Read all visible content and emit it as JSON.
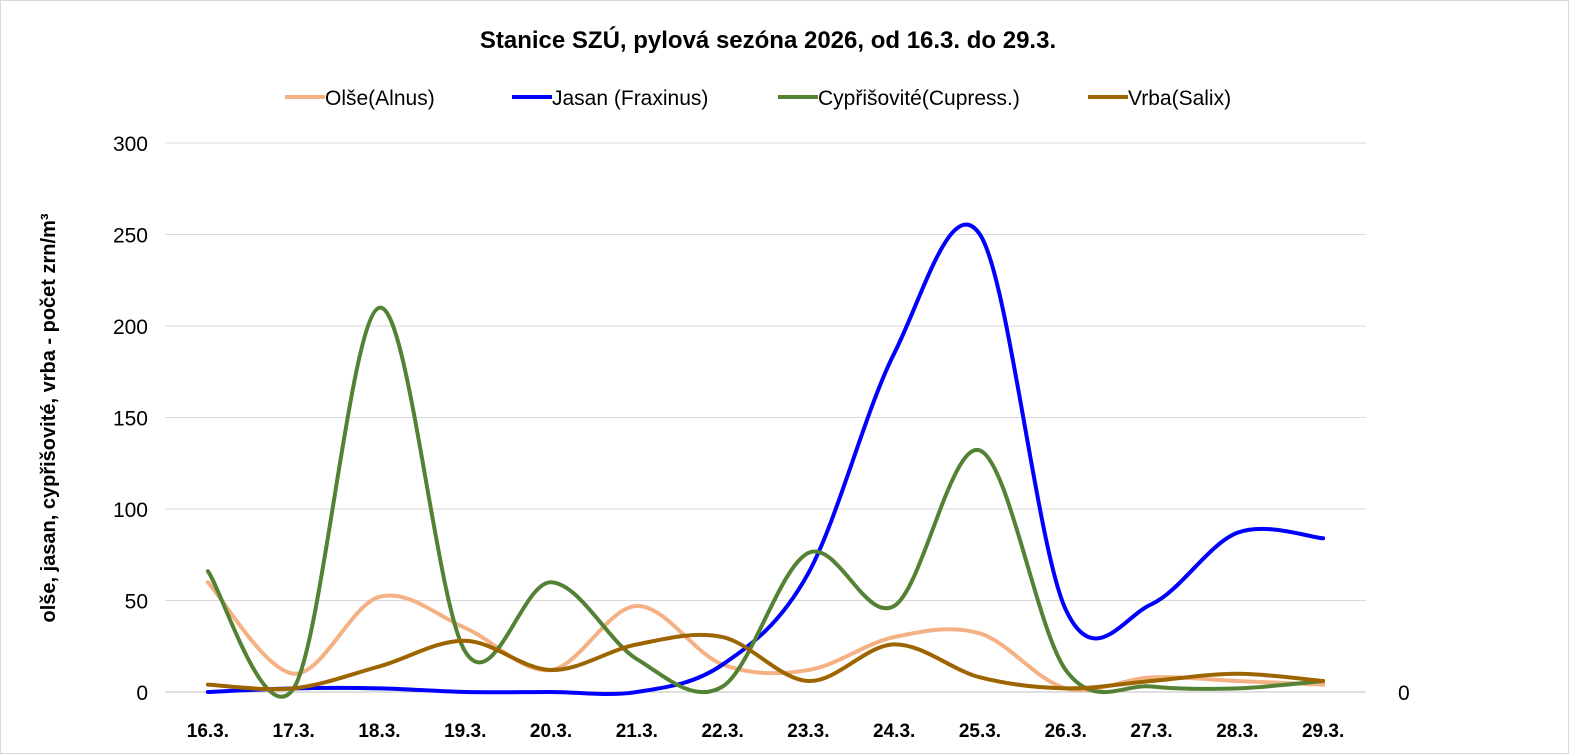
{
  "chart_data": {
    "type": "line",
    "title": "Stanice SZÚ, pylová sezóna 2026, od 16.3. do 29.3.",
    "xlabel": "",
    "ylabel": "olše, jasan, cypřišovité, vrba - počet zrn/m³",
    "ylim": [
      0,
      300
    ],
    "yticks": [
      "0",
      "50",
      "100",
      "150",
      "200",
      "250",
      "300"
    ],
    "secondary_yticks": [
      "0"
    ],
    "grid": true,
    "legend_position": "top",
    "categories": [
      "16.3.",
      "17.3.",
      "18.3.",
      "19.3.",
      "20.3.",
      "21.3.",
      "22.3.",
      "23.3.",
      "24.3.",
      "25.3.",
      "26.3.",
      "27.3.",
      "28.3.",
      "29.3."
    ],
    "series": [
      {
        "name": "Olše(Alnus)",
        "color": "#F4B183",
        "values": [
          60,
          10,
          52,
          35,
          12,
          47,
          15,
          12,
          30,
          32,
          2,
          8,
          6,
          4
        ]
      },
      {
        "name": "Jasan (Fraxinus)",
        "color": "#0000FF",
        "values": [
          0,
          2,
          2,
          0,
          0,
          0,
          15,
          65,
          185,
          250,
          45,
          48,
          87,
          84
        ]
      },
      {
        "name": "Cypřišovité(Cupress.)",
        "color": "#548235",
        "values": [
          66,
          2,
          210,
          22,
          60,
          18,
          3,
          76,
          47,
          132,
          12,
          3,
          2,
          6
        ]
      },
      {
        "name": "Vrba(Salix)",
        "color": "#9C6500",
        "values": [
          4,
          2,
          14,
          28,
          12,
          26,
          30,
          6,
          26,
          8,
          2,
          6,
          10,
          6
        ]
      }
    ]
  }
}
